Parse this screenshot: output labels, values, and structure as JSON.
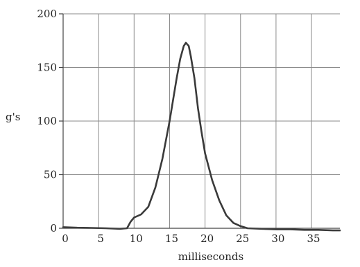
{
  "chart_data": {
    "type": "line",
    "title": "",
    "xlabel": "milliseconds",
    "ylabel": "g's",
    "xlim": [
      0,
      39
    ],
    "ylim": [
      0,
      200
    ],
    "x_ticks": [
      0,
      5,
      10,
      15,
      20,
      25,
      30,
      35
    ],
    "y_ticks": [
      0,
      50,
      100,
      150,
      200
    ],
    "grid": true,
    "series": [
      {
        "name": "",
        "color": "#3a3a3a",
        "x": [
          0,
          2,
          4,
          6,
          8,
          9,
          9.5,
          10,
          11,
          12,
          13,
          14,
          15,
          15.5,
          16,
          16.5,
          17,
          17.3,
          17.7,
          18,
          18.5,
          19,
          19.5,
          20,
          21,
          22,
          23,
          24,
          25,
          26,
          28,
          30,
          32,
          34,
          36,
          38,
          39
        ],
        "y": [
          1,
          0.5,
          0.3,
          0,
          -0.5,
          0,
          6,
          10,
          13,
          20,
          38,
          65,
          100,
          120,
          140,
          158,
          170,
          173,
          170,
          160,
          140,
          112,
          90,
          70,
          45,
          26,
          12,
          5,
          2,
          0,
          -0.5,
          -1,
          -1,
          -1.5,
          -1.5,
          -2,
          -2
        ]
      }
    ]
  }
}
